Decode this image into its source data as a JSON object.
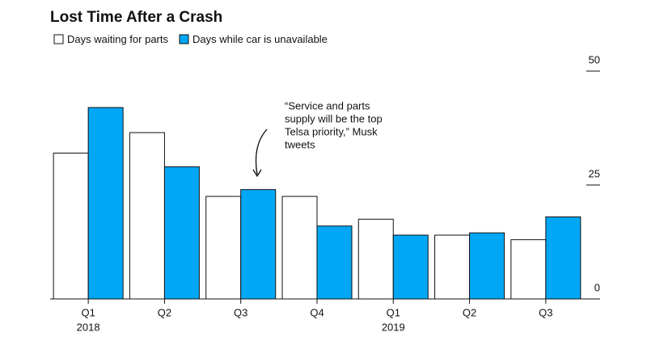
{
  "chart_data": {
    "type": "bar",
    "title": "Lost Time After a Crash",
    "categories": [
      "Q1",
      "Q2",
      "Q3",
      "Q4",
      "Q1",
      "Q2",
      "Q3"
    ],
    "years": [
      "2018",
      null,
      null,
      null,
      "2019",
      null,
      null
    ],
    "series": [
      {
        "name": "Days waiting for parts",
        "color": "#ffffff",
        "values": [
          32,
          36.5,
          22.5,
          22.5,
          17.5,
          14,
          13
        ]
      },
      {
        "name": "Days while car is unavailable",
        "color": "#00a7f5",
        "values": [
          42,
          29,
          24,
          16,
          14,
          14.5,
          18
        ]
      }
    ],
    "ylim": [
      0,
      50
    ],
    "yticks": [
      0,
      25,
      50
    ],
    "y_axis_side": "right",
    "annotation": [
      "“Service and parts",
      "supply will be the top",
      "Telsa priority,” Musk",
      "tweets"
    ]
  }
}
